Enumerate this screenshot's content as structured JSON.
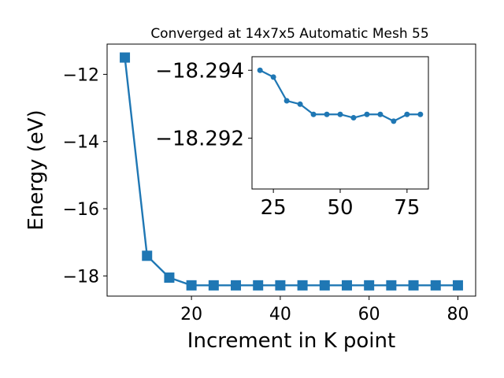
{
  "chart_data": [
    {
      "type": "line",
      "title": "Converged at 14x7x5 Automatic Mesh 55",
      "xlabel": "Increment in K point",
      "ylabel": "Energy (eV)",
      "xlim": [
        1,
        84
      ],
      "ylim": [
        -18.6,
        -11.1
      ],
      "xticks": [
        20,
        40,
        60,
        80
      ],
      "xtick_labels": [
        "20",
        "40",
        "60",
        "80"
      ],
      "yticks": [
        -12,
        -14,
        -16,
        -18
      ],
      "ytick_labels": [
        "−12",
        "−14",
        "−16",
        "−18"
      ],
      "marker": "square",
      "color": "#1f77b4",
      "grid": false,
      "series": [
        {
          "x": [
            5,
            10,
            15,
            20,
            25,
            30,
            35,
            40,
            45,
            50,
            55,
            60,
            65,
            70,
            75,
            80
          ],
          "y": [
            -11.5,
            -17.4,
            -18.05,
            -18.28,
            -18.28,
            -18.28,
            -18.28,
            -18.28,
            -18.28,
            -18.28,
            -18.28,
            -18.28,
            -18.28,
            -18.28,
            -18.28,
            -18.28
          ]
        }
      ]
    },
    {
      "type": "line",
      "title": "",
      "xlim": [
        17,
        83
      ],
      "ylim": [
        -18.2905,
        -18.2944
      ],
      "xticks": [
        25,
        50,
        75
      ],
      "xtick_labels": [
        "25",
        "50",
        "75"
      ],
      "yticks": [
        -18.294,
        -18.292
      ],
      "ytick_labels": [
        "−18.294",
        "−18.292"
      ],
      "marker": "circle",
      "color": "#1f77b4",
      "grid": false,
      "series": [
        {
          "x": [
            20,
            25,
            30,
            35,
            40,
            45,
            50,
            55,
            60,
            65,
            70,
            75,
            80
          ],
          "y": [
            -18.294,
            -18.2938,
            -18.2931,
            -18.293,
            -18.2927,
            -18.2927,
            -18.2927,
            -18.2926,
            -18.2927,
            -18.2927,
            -18.2925,
            -18.2927,
            -18.2927
          ]
        }
      ]
    }
  ]
}
